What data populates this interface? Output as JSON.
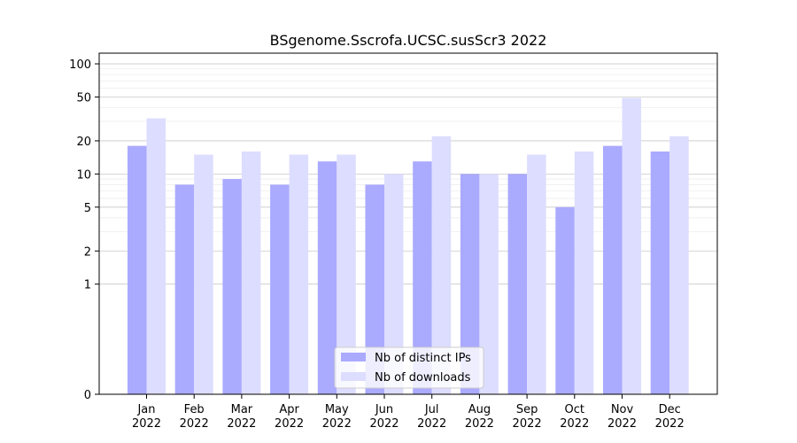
{
  "chart_data": {
    "type": "bar",
    "title": "BSgenome.Sscrofa.UCSC.susScr3 2022",
    "xlabel": "",
    "ylabel": "",
    "categories": [
      {
        "month": "Jan",
        "year": "2022"
      },
      {
        "month": "Feb",
        "year": "2022"
      },
      {
        "month": "Mar",
        "year": "2022"
      },
      {
        "month": "Apr",
        "year": "2022"
      },
      {
        "month": "May",
        "year": "2022"
      },
      {
        "month": "Jun",
        "year": "2022"
      },
      {
        "month": "Jul",
        "year": "2022"
      },
      {
        "month": "Aug",
        "year": "2022"
      },
      {
        "month": "Sep",
        "year": "2022"
      },
      {
        "month": "Oct",
        "year": "2022"
      },
      {
        "month": "Nov",
        "year": "2022"
      },
      {
        "month": "Dec",
        "year": "2022"
      }
    ],
    "series": [
      {
        "name": "Nb of distinct IPs",
        "color": "#aaaaff",
        "values": [
          18,
          8,
          9,
          8,
          13,
          8,
          13,
          10,
          10,
          5,
          18,
          16
        ]
      },
      {
        "name": "Nb of downloads",
        "color": "#ddddff",
        "values": [
          32,
          15,
          16,
          15,
          15,
          10,
          22,
          10,
          15,
          16,
          49,
          22
        ]
      }
    ],
    "yscale": "symlog",
    "yticks": [
      {
        "value": 0,
        "label": "0"
      },
      {
        "value": 1,
        "label": "1"
      },
      {
        "value": 2,
        "label": "2"
      },
      {
        "value": 5,
        "label": "5"
      },
      {
        "value": 10,
        "label": "10"
      },
      {
        "value": 20,
        "label": "20"
      },
      {
        "value": 50,
        "label": "50"
      },
      {
        "value": 100,
        "label": "100"
      }
    ],
    "ylim": [
      0,
      125
    ],
    "grid": true,
    "legend_position": "bottom-center"
  }
}
